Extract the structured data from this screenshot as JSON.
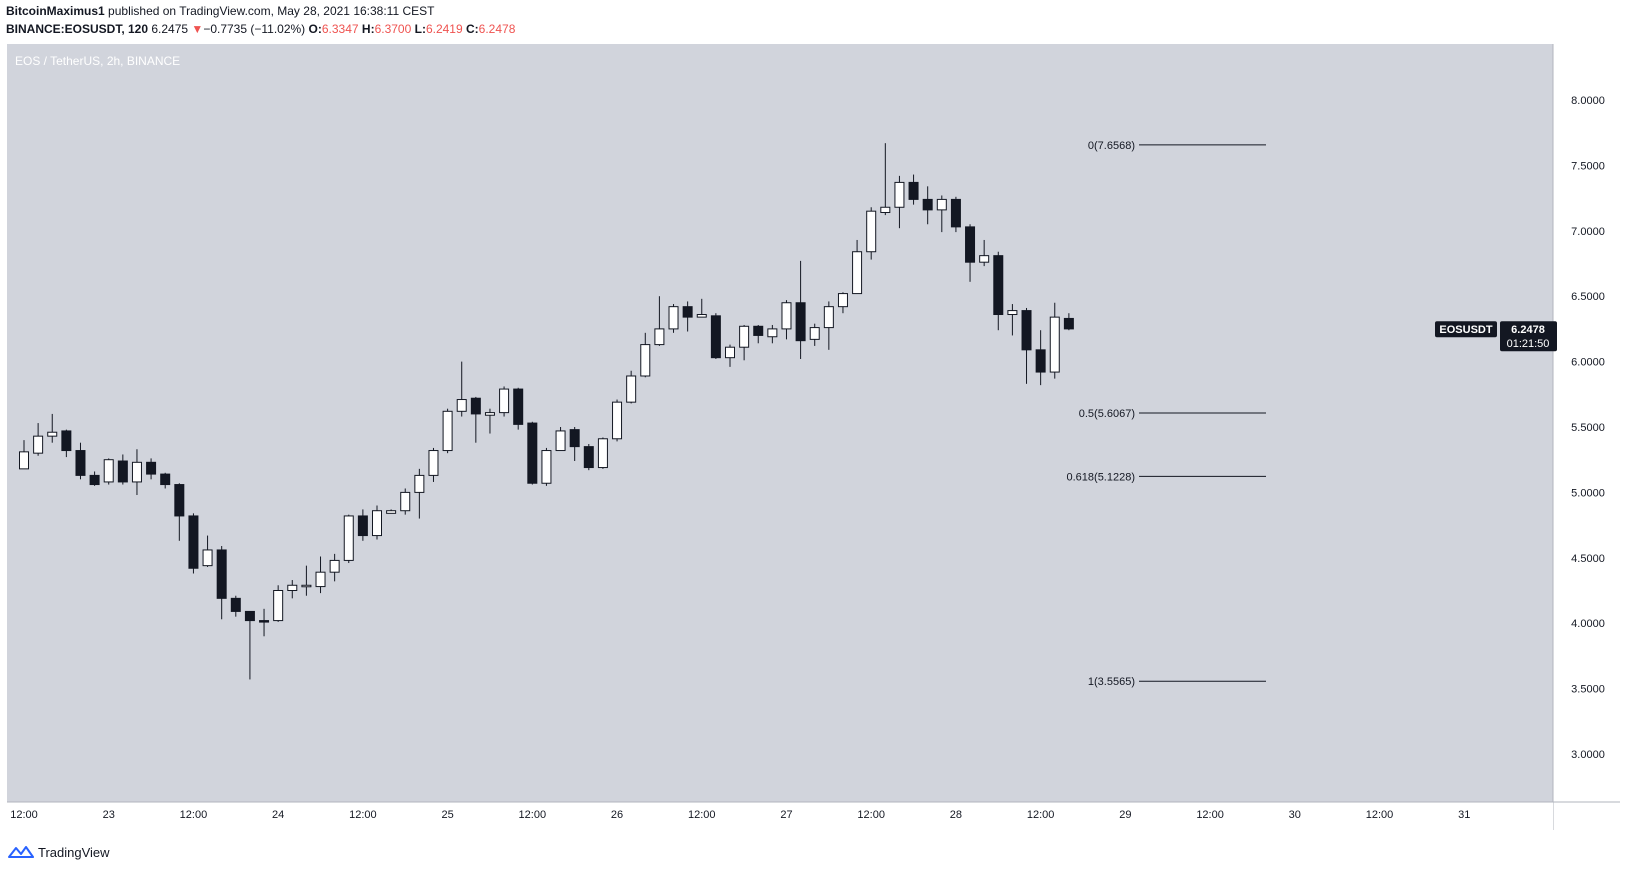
{
  "header": {
    "author": "BitcoinMaximus1",
    "published": "published on TradingView.com, May 28, 2021 16:38:11 CEST",
    "symbol": "BINANCE:EOSUSDT, 120",
    "price": "6.2475",
    "change_arrow": "▼",
    "change": "−0.7735 (−11.02%)",
    "o_label": "O:",
    "o_value": "6.3347",
    "h_label": "H:",
    "h_value": "6.3700",
    "l_label": "L:",
    "l_value": "6.2419",
    "c_label": "C:",
    "c_value": "6.2478"
  },
  "footer": {
    "brand": "TradingView",
    "icon": "tradingview-logo-icon"
  },
  "colors": {
    "plot_bg": "#d1d4dc",
    "up_body": "#ffffff",
    "down_body": "#131722",
    "wick": "#131722",
    "fib_line": "#131722",
    "price_tag_bg": "#131722",
    "header_red": "#ef5350"
  },
  "chart_data": {
    "type": "candlestick",
    "title": "EOS / TetherUS, 2h, BINANCE",
    "currency_label": "USDT",
    "ylim": [
      2.75,
      8.4
    ],
    "y_ticks": [
      "8.0000",
      "7.5000",
      "7.0000",
      "6.5000",
      "6.0000",
      "5.5000",
      "5.0000",
      "4.5000",
      "4.0000",
      "3.5000",
      "3.0000"
    ],
    "x_tick_labels": [
      "12:00",
      "23",
      "12:00",
      "24",
      "12:00",
      "25",
      "12:00",
      "26",
      "12:00",
      "27",
      "12:00",
      "28",
      "12:00",
      "29",
      "12:00",
      "30",
      "12:00",
      "31"
    ],
    "interval": "2h",
    "start": "2021-05-22T12:00",
    "candles": [
      [
        5.18,
        5.31,
        5.4,
        5.18
      ],
      [
        5.3,
        5.43,
        5.53,
        5.28
      ],
      [
        5.43,
        5.46,
        5.6,
        5.38
      ],
      [
        5.47,
        5.32,
        5.48,
        5.27
      ],
      [
        5.32,
        5.13,
        5.38,
        5.1
      ],
      [
        5.13,
        5.06,
        5.16,
        5.05
      ],
      [
        5.08,
        5.25,
        5.26,
        5.06
      ],
      [
        5.24,
        5.08,
        5.29,
        5.06
      ],
      [
        5.08,
        5.23,
        5.33,
        4.98
      ],
      [
        5.23,
        5.14,
        5.26,
        5.1
      ],
      [
        5.14,
        5.06,
        5.15,
        5.03
      ],
      [
        5.06,
        4.82,
        5.07,
        4.63
      ],
      [
        4.82,
        4.42,
        4.84,
        4.38
      ],
      [
        4.44,
        4.56,
        4.67,
        4.43
      ],
      [
        4.56,
        4.19,
        4.59,
        4.03
      ],
      [
        4.19,
        4.09,
        4.21,
        4.05
      ],
      [
        4.09,
        4.02,
        4.09,
        3.57
      ],
      [
        4.02,
        4.01,
        4.11,
        3.9
      ],
      [
        4.02,
        4.25,
        4.29,
        4.01
      ],
      [
        4.25,
        4.29,
        4.33,
        4.19
      ],
      [
        4.28,
        4.29,
        4.44,
        4.21
      ],
      [
        4.28,
        4.39,
        4.51,
        4.23
      ],
      [
        4.39,
        4.48,
        4.53,
        4.32
      ],
      [
        4.48,
        4.82,
        4.83,
        4.46
      ],
      [
        4.82,
        4.67,
        4.87,
        4.63
      ],
      [
        4.67,
        4.86,
        4.9,
        4.64
      ],
      [
        4.84,
        4.86,
        4.87,
        4.84
      ],
      [
        4.86,
        5.0,
        5.03,
        4.83
      ],
      [
        5.0,
        5.13,
        5.18,
        4.8
      ],
      [
        5.13,
        5.32,
        5.34,
        5.08
      ],
      [
        5.32,
        5.62,
        5.64,
        5.3
      ],
      [
        5.62,
        5.71,
        6.0,
        5.58
      ],
      [
        5.72,
        5.6,
        5.73,
        5.38
      ],
      [
        5.59,
        5.61,
        5.64,
        5.45
      ],
      [
        5.61,
        5.79,
        5.81,
        5.58
      ],
      [
        5.79,
        5.52,
        5.8,
        5.48
      ],
      [
        5.53,
        5.07,
        5.54,
        5.06
      ],
      [
        5.07,
        5.32,
        5.34,
        5.05
      ],
      [
        5.32,
        5.47,
        5.5,
        5.32
      ],
      [
        5.48,
        5.35,
        5.5,
        5.24
      ],
      [
        5.35,
        5.19,
        5.37,
        5.17
      ],
      [
        5.19,
        5.41,
        5.42,
        5.18
      ],
      [
        5.41,
        5.69,
        5.71,
        5.39
      ],
      [
        5.69,
        5.89,
        5.93,
        5.68
      ],
      [
        5.89,
        6.13,
        6.22,
        5.88
      ],
      [
        6.13,
        6.25,
        6.5,
        6.12
      ],
      [
        6.25,
        6.42,
        6.44,
        6.22
      ],
      [
        6.42,
        6.34,
        6.46,
        6.23
      ],
      [
        6.34,
        6.36,
        6.48,
        6.34
      ],
      [
        6.35,
        6.03,
        6.37,
        6.02
      ],
      [
        6.03,
        6.11,
        6.13,
        5.96
      ],
      [
        6.11,
        6.27,
        6.28,
        6.01
      ],
      [
        6.27,
        6.2,
        6.28,
        6.14
      ],
      [
        6.19,
        6.25,
        6.28,
        6.14
      ],
      [
        6.25,
        6.45,
        6.47,
        6.17
      ],
      [
        6.45,
        6.16,
        6.77,
        6.02
      ],
      [
        6.17,
        6.26,
        6.29,
        6.12
      ],
      [
        6.26,
        6.42,
        6.46,
        6.09
      ],
      [
        6.42,
        6.52,
        6.53,
        6.37
      ],
      [
        6.52,
        6.84,
        6.93,
        6.52
      ],
      [
        6.84,
        7.15,
        7.18,
        6.78
      ],
      [
        7.14,
        7.18,
        7.67,
        7.12
      ],
      [
        7.18,
        7.37,
        7.42,
        7.02
      ],
      [
        7.37,
        7.24,
        7.43,
        7.2
      ],
      [
        7.24,
        7.16,
        7.34,
        7.05
      ],
      [
        7.16,
        7.24,
        7.27,
        6.99
      ],
      [
        7.24,
        7.03,
        7.26,
        6.99
      ],
      [
        7.03,
        6.76,
        7.05,
        6.61
      ],
      [
        6.76,
        6.81,
        6.93,
        6.73
      ],
      [
        6.81,
        6.36,
        6.84,
        6.24
      ],
      [
        6.36,
        6.39,
        6.44,
        6.2
      ],
      [
        6.39,
        6.09,
        6.41,
        5.83
      ],
      [
        6.09,
        5.92,
        6.24,
        5.82
      ],
      [
        5.92,
        6.34,
        6.45,
        5.87
      ],
      [
        6.33,
        6.25,
        6.37,
        6.24
      ]
    ],
    "fib_levels": [
      {
        "ratio": "0",
        "value": 7.6568,
        "label": "0(7.6568)"
      },
      {
        "ratio": "0.5",
        "value": 5.6067,
        "label": "0.5(5.6067)"
      },
      {
        "ratio": "0.618",
        "value": 5.1228,
        "label": "0.618(5.1228)"
      },
      {
        "ratio": "1",
        "value": 3.5565,
        "label": "1(3.5565)"
      }
    ],
    "last_price": {
      "symbol": "EOSUSDT",
      "value": 6.2478,
      "label": "6.2478",
      "countdown": "01:21:50"
    },
    "grid": false,
    "legend": "top-left"
  }
}
